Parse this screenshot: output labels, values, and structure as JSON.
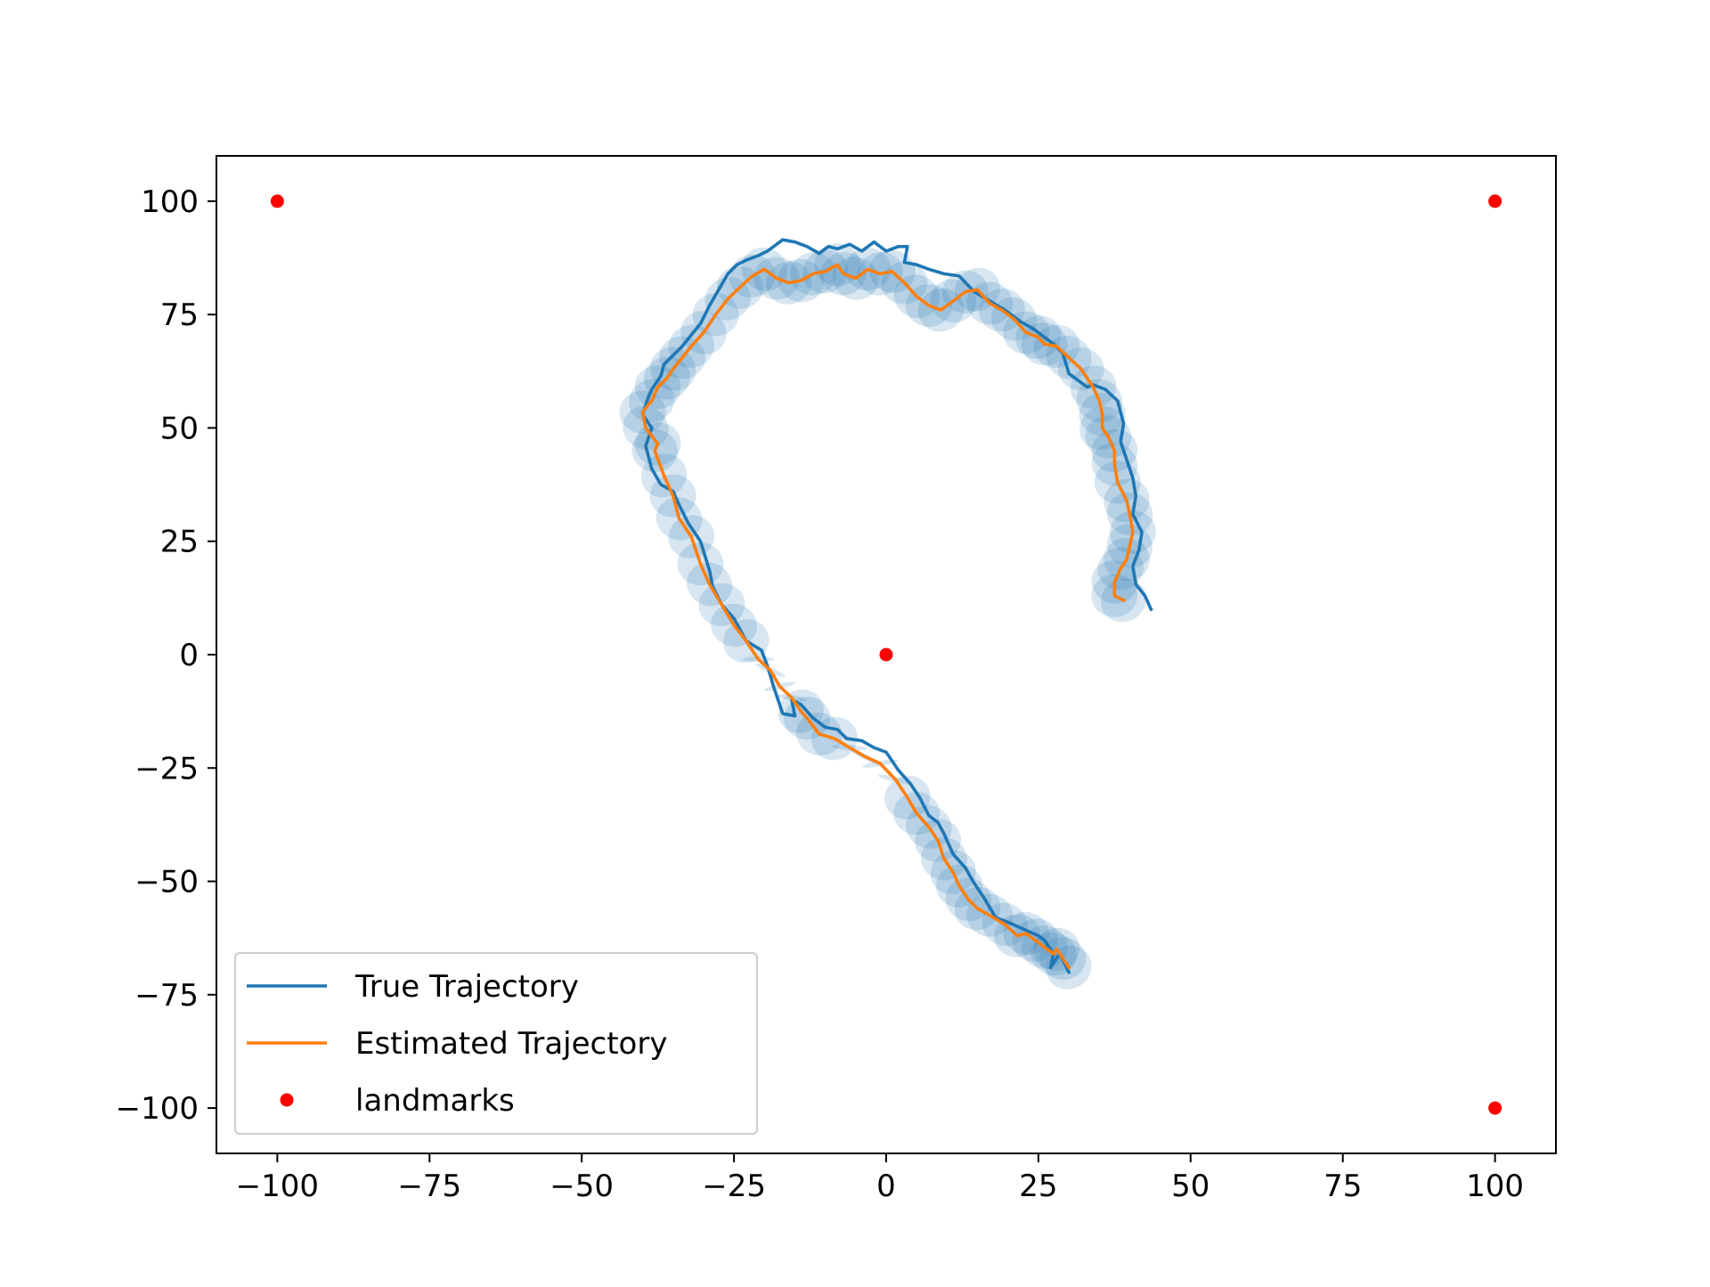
{
  "chart_data": {
    "type": "line",
    "title": "",
    "xlabel": "",
    "ylabel": "",
    "xlim": [
      -110,
      110
    ],
    "ylim": [
      -110,
      110
    ],
    "xticks": [
      -100,
      -75,
      -50,
      -25,
      0,
      25,
      50,
      75,
      100
    ],
    "yticks": [
      -100,
      -75,
      -50,
      -25,
      0,
      25,
      50,
      75,
      100
    ],
    "xtick_labels": [
      "−100",
      "−75",
      "−50",
      "−25",
      "0",
      "25",
      "50",
      "75",
      "100"
    ],
    "ytick_labels": [
      "−100",
      "−75",
      "−50",
      "−25",
      "0",
      "25",
      "50",
      "75",
      "100"
    ],
    "grid": false,
    "legend_position": "bottom-left",
    "series": [
      {
        "name": "True Trajectory",
        "kind": "line",
        "color": "#1f77b4",
        "x": [
          30,
          28.5,
          27,
          27.5,
          26,
          25,
          22.5,
          20,
          18,
          16,
          14.5,
          13,
          11,
          9.5,
          8.5,
          7,
          5.5,
          4,
          2,
          0,
          -2,
          -4,
          -6.5,
          -8,
          -10,
          -12,
          -14,
          -15.5,
          -15,
          -17,
          -17.5,
          -18.5,
          -19.5,
          -20.5,
          -23,
          -25,
          -27,
          -28.5,
          -29,
          -30.5,
          -32.5,
          -34,
          -35,
          -37,
          -38.5,
          -39.5,
          -38.5,
          -40,
          -39,
          -38.5,
          -37,
          -36.5,
          -35,
          -33.5,
          -32,
          -30.5,
          -29,
          -27.5,
          -26,
          -24.5,
          -23,
          -21,
          -19.5,
          -17,
          -15,
          -13,
          -11,
          -9.5,
          -8,
          -6,
          -4,
          -2,
          0,
          2,
          3.5,
          3,
          5,
          7,
          9.5,
          12,
          14.5,
          17,
          19.5,
          22,
          24,
          26,
          27.5,
          29,
          30,
          31.5,
          33,
          34,
          36,
          38,
          39,
          38.5,
          39.5,
          40.5,
          41,
          40.5,
          42,
          41.5,
          40.5,
          41,
          42.5,
          43.5
        ],
        "y": [
          -70,
          -66,
          -69,
          -66,
          -63,
          -62,
          -60.5,
          -59,
          -58,
          -53.5,
          -50.5,
          -47,
          -44,
          -39.5,
          -37,
          -35.5,
          -31.5,
          -28.5,
          -25.5,
          -21.5,
          -20.5,
          -19,
          -18.5,
          -16.5,
          -16,
          -14,
          -11,
          -10,
          -13.5,
          -13,
          -11,
          -7,
          -2.5,
          1,
          3,
          8,
          11,
          15,
          18.5,
          25,
          29,
          33,
          36,
          37.5,
          41,
          46,
          50,
          53,
          57,
          58.5,
          61.5,
          64,
          66,
          68,
          70.5,
          73,
          77,
          80.5,
          84,
          86,
          87,
          88,
          89,
          91.5,
          91,
          90,
          88.5,
          90,
          89.5,
          90.5,
          89,
          91,
          89,
          90,
          90,
          86.5,
          86,
          85,
          84,
          83.5,
          80,
          78,
          76,
          73.5,
          72,
          70,
          68.5,
          66.5,
          62,
          60.5,
          59,
          59.5,
          58.5,
          56,
          51,
          47,
          43,
          39,
          35,
          31,
          27,
          23,
          19.5,
          15.5,
          13,
          10
        ]
      },
      {
        "name": "Estimated Trajectory",
        "kind": "line",
        "color": "#ff7f0e",
        "x": [
          30,
          29,
          28,
          27.5,
          26,
          24.5,
          23,
          21.5,
          19.5,
          17,
          15,
          13.5,
          12,
          11,
          9.5,
          8.5,
          7,
          5,
          3.5,
          1.5,
          -1,
          -3.5,
          -6,
          -8.5,
          -11,
          -13,
          -14,
          -15.5,
          -17.5,
          -19,
          -21,
          -23,
          -25,
          -27,
          -29,
          -30.5,
          -32,
          -34,
          -35,
          -36.5,
          -38,
          -37.5,
          -39.5,
          -40,
          -38.5,
          -37.5,
          -36,
          -35,
          -33.5,
          -32,
          -30,
          -28,
          -26,
          -24,
          -22,
          -20,
          -18,
          -16,
          -14,
          -12,
          -10,
          -8,
          -7,
          -5,
          -3,
          -1,
          1,
          3,
          5,
          7,
          9,
          11,
          13,
          15,
          17,
          19,
          21,
          23,
          25,
          26,
          28,
          30,
          32,
          34,
          35,
          35.5,
          35.5,
          36.5,
          37.5,
          37.5,
          38,
          39.5,
          40,
          40.5,
          40,
          39.5,
          38.5,
          37.5,
          37.5,
          39
        ],
        "y": [
          -69,
          -67,
          -65,
          -66,
          -64.5,
          -63,
          -61.5,
          -62,
          -59.5,
          -57.5,
          -56,
          -54,
          -51,
          -48,
          -45,
          -41,
          -38,
          -35,
          -31.5,
          -27.5,
          -24,
          -22.5,
          -20.5,
          -18.5,
          -17.5,
          -14,
          -12.5,
          -9.5,
          -7,
          -3.5,
          -1,
          3,
          6.5,
          11,
          15.5,
          20,
          26,
          30,
          35,
          39.5,
          45,
          46.5,
          50,
          53.5,
          56,
          59,
          61,
          63,
          65.5,
          68,
          71,
          75,
          78.5,
          81,
          83.5,
          85,
          83,
          82,
          82.5,
          84,
          84.5,
          86,
          84,
          83,
          85,
          84,
          84.5,
          82,
          79,
          77,
          76,
          78,
          80,
          80.5,
          77.5,
          76,
          74,
          71,
          70,
          68.5,
          68,
          65.5,
          63,
          59,
          56,
          53,
          50,
          48,
          45,
          42,
          38,
          34,
          31,
          27,
          24,
          21,
          19,
          16,
          13,
          12
        ]
      },
      {
        "name": "landmarks",
        "kind": "scatter",
        "color": "#ff0000",
        "x": [
          -100,
          100,
          0,
          100
        ],
        "y": [
          100,
          100,
          0,
          -100
        ]
      }
    ]
  }
}
